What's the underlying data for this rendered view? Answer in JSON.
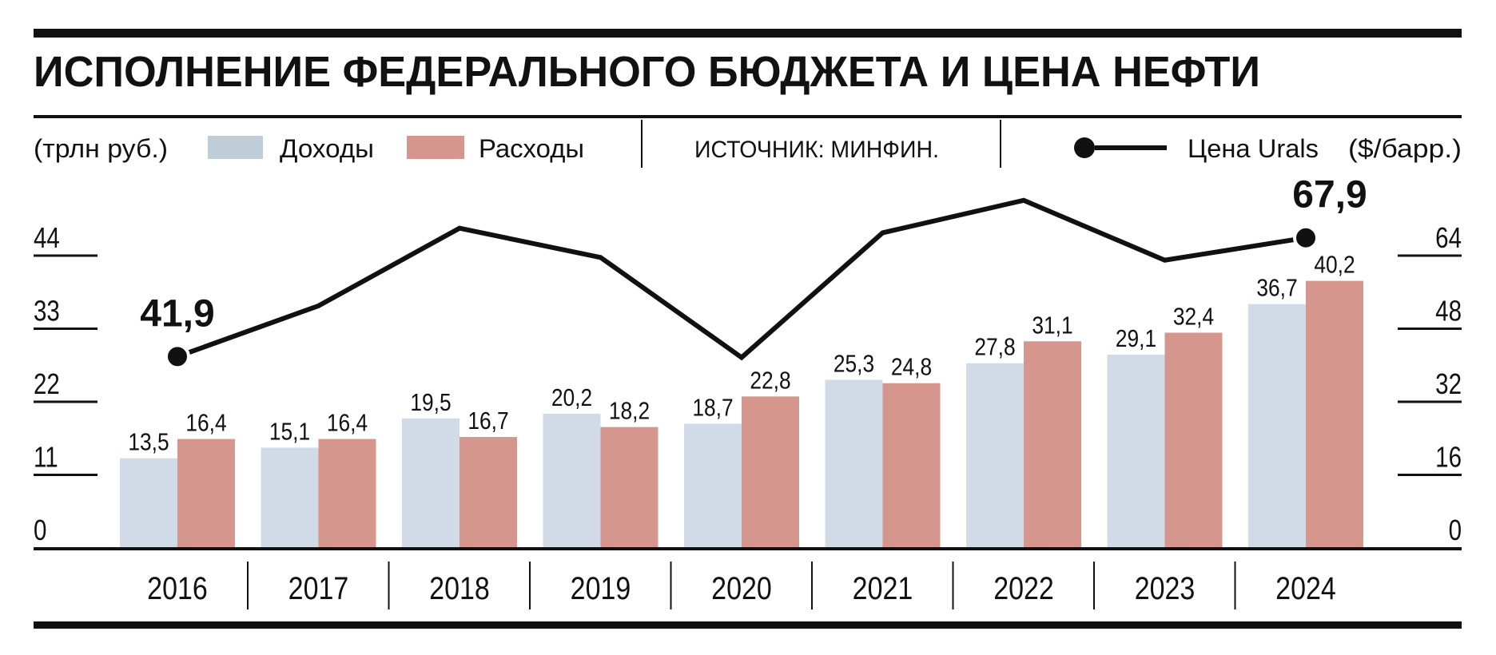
{
  "chart_data": {
    "type": "bar",
    "title": "ИСПОЛНЕНИЕ ФЕДЕРАЛЬНОГО БЮДЖЕТА И ЦЕНА НЕФТИ",
    "left_unit": "(трлн руб.)",
    "right_unit": "($/барр.)",
    "source": "ИСТОЧНИК: МИНФИН.",
    "categories": [
      "2016",
      "2017",
      "2018",
      "2019",
      "2020",
      "2021",
      "2022",
      "2023",
      "2024"
    ],
    "series": [
      {
        "name": "Доходы",
        "type": "bar",
        "axis": "left",
        "color": "#d1dbe8",
        "values": [
          13.5,
          15.1,
          19.5,
          20.2,
          18.7,
          25.3,
          27.8,
          29.1,
          36.7
        ],
        "labels": [
          "13,5",
          "15,1",
          "19,5",
          "20,2",
          "18,7",
          "25,3",
          "27,8",
          "29,1",
          "36,7"
        ]
      },
      {
        "name": "Расходы",
        "type": "bar",
        "axis": "left",
        "color": "#d5968d",
        "values": [
          16.4,
          16.4,
          16.7,
          18.2,
          22.8,
          24.8,
          31.1,
          32.4,
          40.2
        ],
        "labels": [
          "16,4",
          "16,4",
          "16,7",
          "18,2",
          "22,8",
          "24,8",
          "31,1",
          "32,4",
          "40,2"
        ]
      },
      {
        "name": "Цена Urals",
        "type": "line",
        "axis": "right",
        "color": "#111111",
        "values": [
          41.9,
          53.0,
          70.0,
          63.6,
          41.7,
          69.0,
          76.1,
          63.0,
          67.9
        ],
        "annotations": [
          {
            "index": 0,
            "label": "41,9"
          },
          {
            "index": 8,
            "label": "67,9"
          }
        ]
      }
    ],
    "left_axis": {
      "ylim": [
        0,
        44
      ],
      "ticks": [
        "0",
        "11",
        "22",
        "33",
        "44"
      ]
    },
    "right_axis": {
      "ylim": [
        0,
        64
      ],
      "ticks": [
        "0",
        "16",
        "32",
        "48",
        "64"
      ]
    },
    "grid": false,
    "legend_placement": "top"
  }
}
